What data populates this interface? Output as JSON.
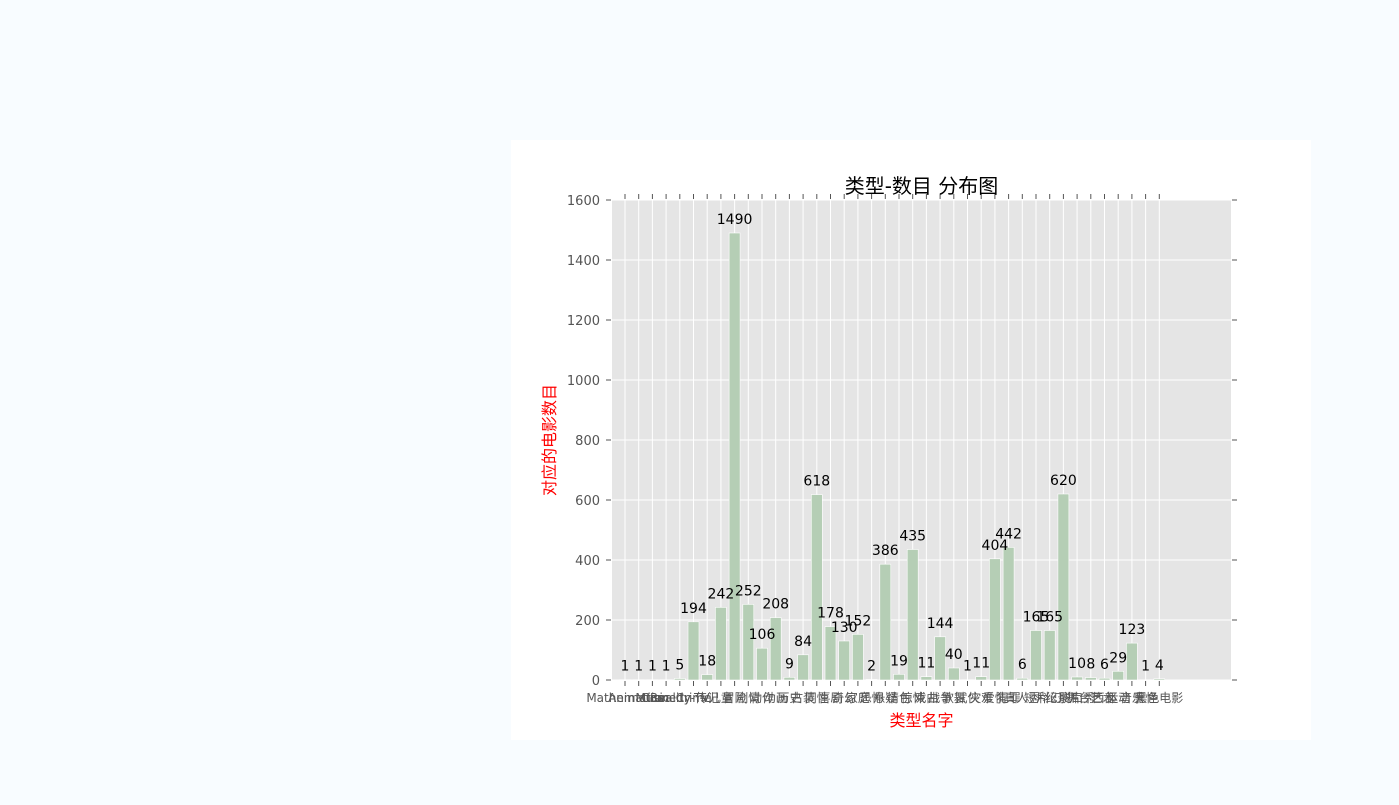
{
  "chart_data": {
    "type": "bar",
    "title": "类型-数目 分布图",
    "xlabel": "类型名字",
    "ylabel": "对应的电影数目",
    "ylim": [
      0,
      1600
    ],
    "yticks": [
      0,
      200,
      400,
      600,
      800,
      1000,
      1200,
      1400,
      1600
    ],
    "grid": true,
    "categories": [
      "Mathematics",
      "Animation",
      "Music",
      "Comedy",
      "Reality-TV",
      "Crime",
      "传记",
      "儿童",
      "冒险",
      "剧情",
      "动作",
      "动画",
      "历史",
      "古装",
      "同性",
      "喜剧",
      "奇幻",
      "家庭",
      "恐怖",
      "悬疑",
      "情色",
      "惊悚",
      "戏曲",
      "战争",
      "歌舞",
      "武侠",
      "灾难",
      "爱情",
      "犯罪",
      "真人秀",
      "短片",
      "科幻",
      "纪录片",
      "脱口秀",
      "舞台艺术",
      "西部",
      "运动",
      "音乐",
      "鬼怪",
      "黑色电影"
    ],
    "values": [
      1,
      1,
      1,
      1,
      5,
      194,
      18,
      242,
      1490,
      252,
      106,
      208,
      9,
      84,
      618,
      178,
      130,
      152,
      2,
      386,
      19,
      435,
      11,
      144,
      40,
      1,
      11,
      404,
      442,
      6,
      165,
      165,
      620,
      10,
      8,
      6,
      29,
      123,
      1,
      4
    ],
    "bar_color": "#b5ceb5",
    "plot_background": "#e5e5e5",
    "title_color": "#000000",
    "axis_label_color": "#ff0000"
  }
}
